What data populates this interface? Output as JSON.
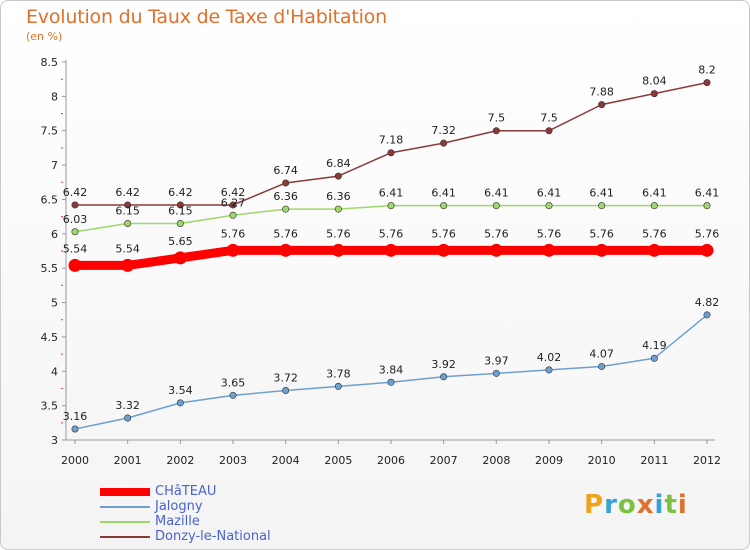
{
  "header": {
    "title": "Evolution du Taux de Taxe d'Habitation",
    "subtitle": "(en %)"
  },
  "logo": {
    "letters": [
      "P",
      "r",
      "o",
      "x",
      "i",
      "t",
      "i"
    ],
    "colors": [
      "#f0a21b",
      "#3aa0d8",
      "#7cc242",
      "#e0702a",
      "#3aa0d8",
      "#7cc242",
      "#e0702a"
    ]
  },
  "chart_data": {
    "type": "line",
    "x": [
      "2000",
      "2001",
      "2002",
      "2003",
      "2004",
      "2005",
      "2006",
      "2007",
      "2008",
      "2009",
      "2010",
      "2011",
      "2012"
    ],
    "ylim": [
      3,
      8.5
    ],
    "yticks": [
      "3",
      "3.5",
      "4",
      "4.5",
      "5",
      "5.5",
      "6",
      "6.5",
      "7",
      "7.5",
      "8",
      "8.5"
    ],
    "grid": false,
    "legend_position": "bottom-left",
    "series": [
      {
        "name": "CHâTEAU",
        "color": "#ff0000",
        "bold": true,
        "values": [
          5.54,
          5.54,
          5.65,
          5.76,
          5.76,
          5.76,
          5.76,
          5.76,
          5.76,
          5.76,
          5.76,
          5.76,
          5.76
        ],
        "labels": [
          "5.54",
          "5.54",
          "5.65",
          "5.76",
          "5.76",
          "5.76",
          "5.76",
          "5.76",
          "5.76",
          "5.76",
          "5.76",
          "5.76",
          "5.76"
        ]
      },
      {
        "name": "Jalogny",
        "color": "#6f9fcf",
        "bold": false,
        "values": [
          3.16,
          3.32,
          3.54,
          3.65,
          3.72,
          3.78,
          3.84,
          3.92,
          3.97,
          4.02,
          4.07,
          4.19,
          4.82
        ],
        "labels": [
          "3.16",
          "3.32",
          "3.54",
          "3.65",
          "3.72",
          "3.78",
          "3.84",
          "3.92",
          "3.97",
          "4.02",
          "4.07",
          "4.19",
          "4.82"
        ]
      },
      {
        "name": "Mazille",
        "color": "#9ed868",
        "bold": false,
        "values": [
          6.03,
          6.15,
          6.15,
          6.27,
          6.36,
          6.36,
          6.41,
          6.41,
          6.41,
          6.41,
          6.41,
          6.41,
          6.41
        ],
        "labels": [
          "6.03",
          "6.15",
          "6.15",
          "6.27",
          "6.36",
          "6.36",
          "6.41",
          "6.41",
          "6.41",
          "6.41",
          "6.41",
          "6.41",
          "6.41"
        ]
      },
      {
        "name": "Donzy-le-National",
        "color": "#8b3a3a",
        "bold": false,
        "values": [
          6.42,
          6.42,
          6.42,
          6.42,
          6.74,
          6.84,
          7.18,
          7.32,
          7.5,
          7.5,
          7.88,
          8.04,
          8.2
        ],
        "labels": [
          "6.42",
          "6.42",
          "6.42",
          "6.42",
          "6.74",
          "6.84",
          "7.18",
          "7.32",
          "7.5",
          "7.5",
          "7.88",
          "8.04",
          "8.2"
        ]
      }
    ]
  }
}
